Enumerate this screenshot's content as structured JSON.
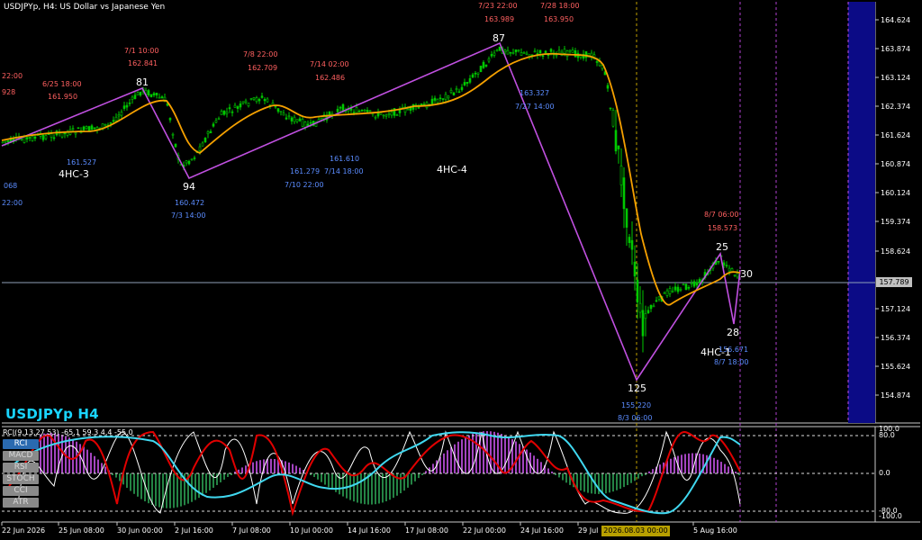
{
  "window": {
    "title": "USDJPYp, H4:  US Dollar vs Japanese Yen",
    "symbol_label": "USDJPYp H4",
    "current_price": "157.789",
    "cursor_date": "2026.08.03 00:00"
  },
  "colors": {
    "background": "#000000",
    "candle": "#00c800",
    "moving_average": "#f5a000",
    "zigzag": "#c050e0",
    "label_high": "#ff6060",
    "label_low": "#5b8cff",
    "symbol_label": "#19d4ff",
    "period_separator": "#1a1a90"
  },
  "price_axis": [
    "164.624",
    "163.874",
    "163.124",
    "162.374",
    "161.624",
    "160.874",
    "160.124",
    "159.374",
    "158.624",
    "157.124",
    "156.374",
    "155.624",
    "154.874"
  ],
  "time_axis": [
    "22 Jun 2026",
    "25 Jun 08:00",
    "30 Jun 00:00",
    "2 Jul 16:00",
    "7 Jul 08:00",
    "10 Jul 00:00",
    "14 Jul 16:00",
    "17 Jul 08:00",
    "22 Jul 00:00",
    "24 Jul 16:00",
    "29 Jul",
    "5 Aug 16:00"
  ],
  "zigzag_labels": [
    {
      "count": "81",
      "price": "162.841",
      "time": "7/1 10:00",
      "kind": "high"
    },
    {
      "count": "94",
      "price": "160.472",
      "time": "7/3 14:00",
      "kind": "low"
    },
    {
      "count": "87",
      "price": "163.989",
      "time": "7/23 22:00",
      "kind": "high"
    },
    {
      "count": "125",
      "price": "155.220",
      "time": "8/3 06:00",
      "kind": "low"
    },
    {
      "count": "25",
      "price": "158.573",
      "time": "8/7 06:00",
      "kind": "high"
    },
    {
      "count": "28",
      "price": "156.671",
      "time": "8/7 18:00",
      "kind": "low"
    },
    {
      "count": "30",
      "price": "",
      "time": "",
      "kind": "current"
    }
  ],
  "swing_labels": [
    {
      "time": "22:00",
      "price": "928"
    },
    {
      "time": "6/25 18:00",
      "price": "161.950"
    },
    {
      "time": "7/8 22:00",
      "price": "162.709"
    },
    {
      "time": "7/14 02:00",
      "price": "162.486"
    },
    {
      "time": "7/28 18:00",
      "price": "163.950"
    },
    {
      "time": "7/27 14:00",
      "price": "163.327"
    },
    {
      "time": "7/10 22:00",
      "price": "161.279"
    },
    {
      "time": "7/14 18:00",
      "price": "161.610"
    },
    {
      "time": "",
      "price": "161.527"
    },
    {
      "time": "22:00",
      "price": "068"
    }
  ],
  "wave_labels": [
    "4HC-3",
    "4HC-4",
    "4HC-1"
  ],
  "subwindow": {
    "indicator_title": "RCI(9,13,27,53) -65.1 59.3 4.4 -55.0",
    "levels": [
      "100.0",
      "80.0",
      "0.0",
      "-80.0",
      "-100.0"
    ],
    "buttons": [
      "RCI",
      "MACD",
      "RSI",
      "STOCH",
      "CCI",
      "ATR"
    ],
    "active_button": "RCI"
  }
}
